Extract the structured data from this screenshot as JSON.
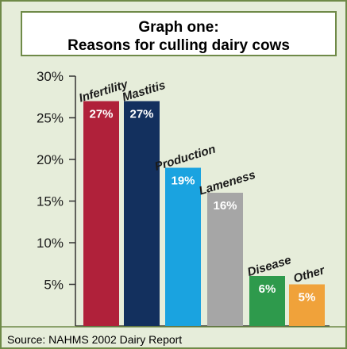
{
  "colors": {
    "background": "#e6edda",
    "border": "#6f8a48",
    "title_box": "#ffffff",
    "axis": "#333333",
    "value_label": "#ffffff",
    "category_label": "#1a1a1a"
  },
  "chart_data": {
    "type": "bar",
    "title_line1": "Graph one:",
    "title_line2": "Reasons for culling dairy cows",
    "source": "Source: NAHMS 2002 Dairy Report",
    "xlabel": "",
    "ylabel": "",
    "ylim": [
      0,
      30
    ],
    "yticks": [
      5,
      10,
      15,
      20,
      25,
      30
    ],
    "ytick_labels": [
      "5%",
      "10%",
      "15%",
      "20%",
      "25%",
      "30%"
    ],
    "grid": false,
    "legend": "none",
    "categories": [
      "Infertility",
      "Mastitis",
      "Production",
      "Lameness",
      "Disease",
      "Other"
    ],
    "values": [
      27,
      27,
      19,
      16,
      6,
      5
    ],
    "value_labels": [
      "27%",
      "27%",
      "19%",
      "16%",
      "6%",
      "5%"
    ],
    "bar_colors": [
      "#b0213a",
      "#13305e",
      "#1aa3e0",
      "#a6a6a6",
      "#2e9a4c",
      "#f0a23a"
    ]
  }
}
